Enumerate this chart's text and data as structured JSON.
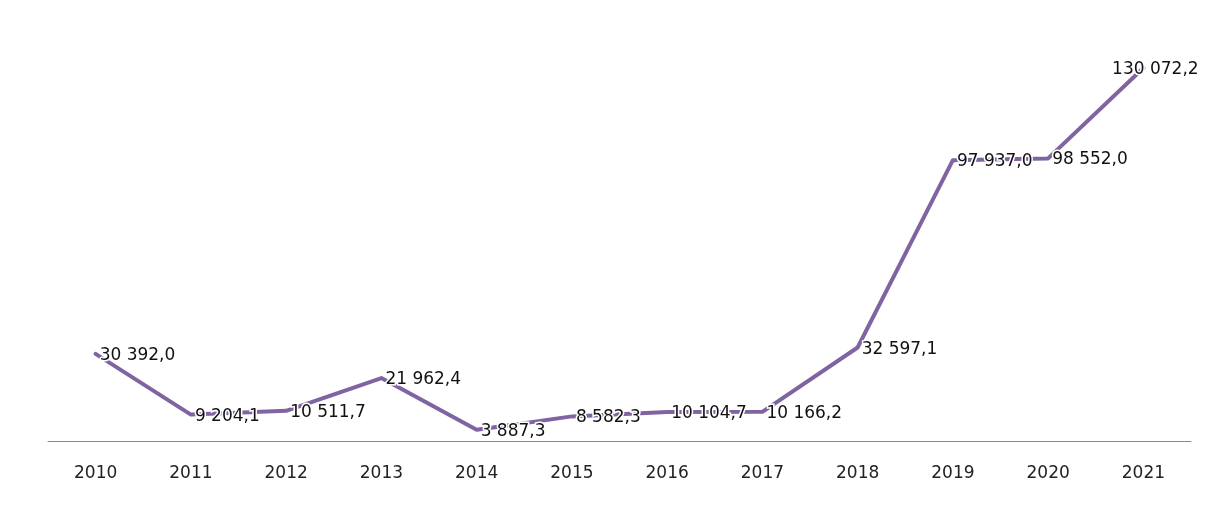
{
  "chart_data": {
    "type": "line",
    "categories": [
      "2010",
      "2011",
      "2012",
      "2013",
      "2014",
      "2015",
      "2016",
      "2017",
      "2018",
      "2019",
      "2020",
      "2021"
    ],
    "series": [
      {
        "color": "#8064a2",
        "values": [
          30392.0,
          9204.1,
          10511.7,
          21962.4,
          3887.3,
          8582.3,
          10104.7,
          10166.2,
          32597.1,
          97937.0,
          98552.0,
          130072.2
        ],
        "value_labels": [
          "30 392,0",
          "9 204,1",
          "10 511,7",
          "21 962,4",
          "3 887,3",
          "8 582,3",
          "10 104,7",
          "10 166,2",
          "32 597,1",
          "97 937,0",
          "98 552,0",
          "130 072,2"
        ]
      }
    ],
    "marker": "none",
    "line_style": "solid"
  }
}
